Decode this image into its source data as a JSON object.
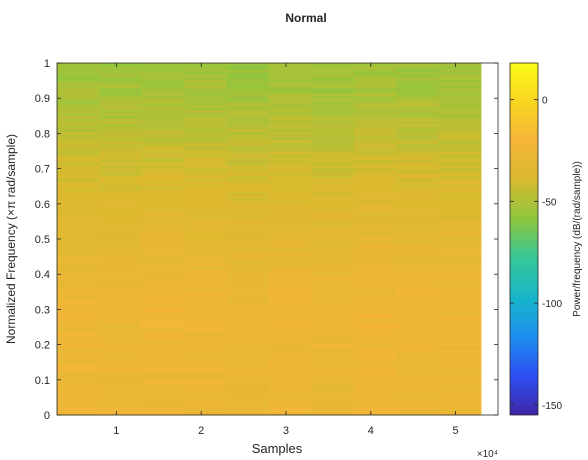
{
  "chart_data": {
    "type": "heatmap",
    "title": "Normal",
    "xlabel": "Samples",
    "ylabel": "Normalized Frequency (×π rad/sample)",
    "x_exponent_label": "×10⁴",
    "x_range": [
      0.3,
      5.5
    ],
    "x_ticks": [
      1,
      2,
      3,
      4,
      5
    ],
    "x_tick_labels": [
      "1",
      "2",
      "3",
      "4",
      "5"
    ],
    "y_range": [
      0,
      1
    ],
    "y_ticks": [
      0,
      0.1,
      0.2,
      0.3,
      0.4,
      0.5,
      0.6,
      0.7,
      0.8,
      0.9,
      1
    ],
    "y_tick_labels": [
      "0",
      "0.1",
      "0.2",
      "0.3",
      "0.4",
      "0.5",
      "0.6",
      "0.7",
      "0.8",
      "0.9",
      "1"
    ],
    "colorbar": {
      "label": "Power/frequency (dB/(rad/sample))",
      "range": [
        -155,
        18
      ],
      "ticks": [
        0,
        -50,
        -100,
        -150
      ],
      "tick_labels": [
        "0",
        "-50",
        "-100",
        "-150"
      ],
      "colormap": [
        "#3e26a8",
        "#2e4ff2",
        "#1f8ef0",
        "#17b6c8",
        "#35c79a",
        "#8cc63f",
        "#d8ba2e",
        "#f6b53a",
        "#f9d522",
        "#f9fb15"
      ]
    },
    "time_bins": [
      0.55,
      1.05,
      1.55,
      2.05,
      2.55,
      3.05,
      3.55,
      4.05,
      4.55,
      5.05
    ],
    "frequency_profile": {
      "frequency": [
        0,
        0.1,
        0.2,
        0.3,
        0.4,
        0.5,
        0.6,
        0.7,
        0.8,
        0.9,
        1
      ],
      "power_db": [
        -27,
        -28,
        -27,
        -26,
        -29,
        -33,
        -37,
        -42,
        -47,
        -52,
        -56
      ]
    }
  }
}
